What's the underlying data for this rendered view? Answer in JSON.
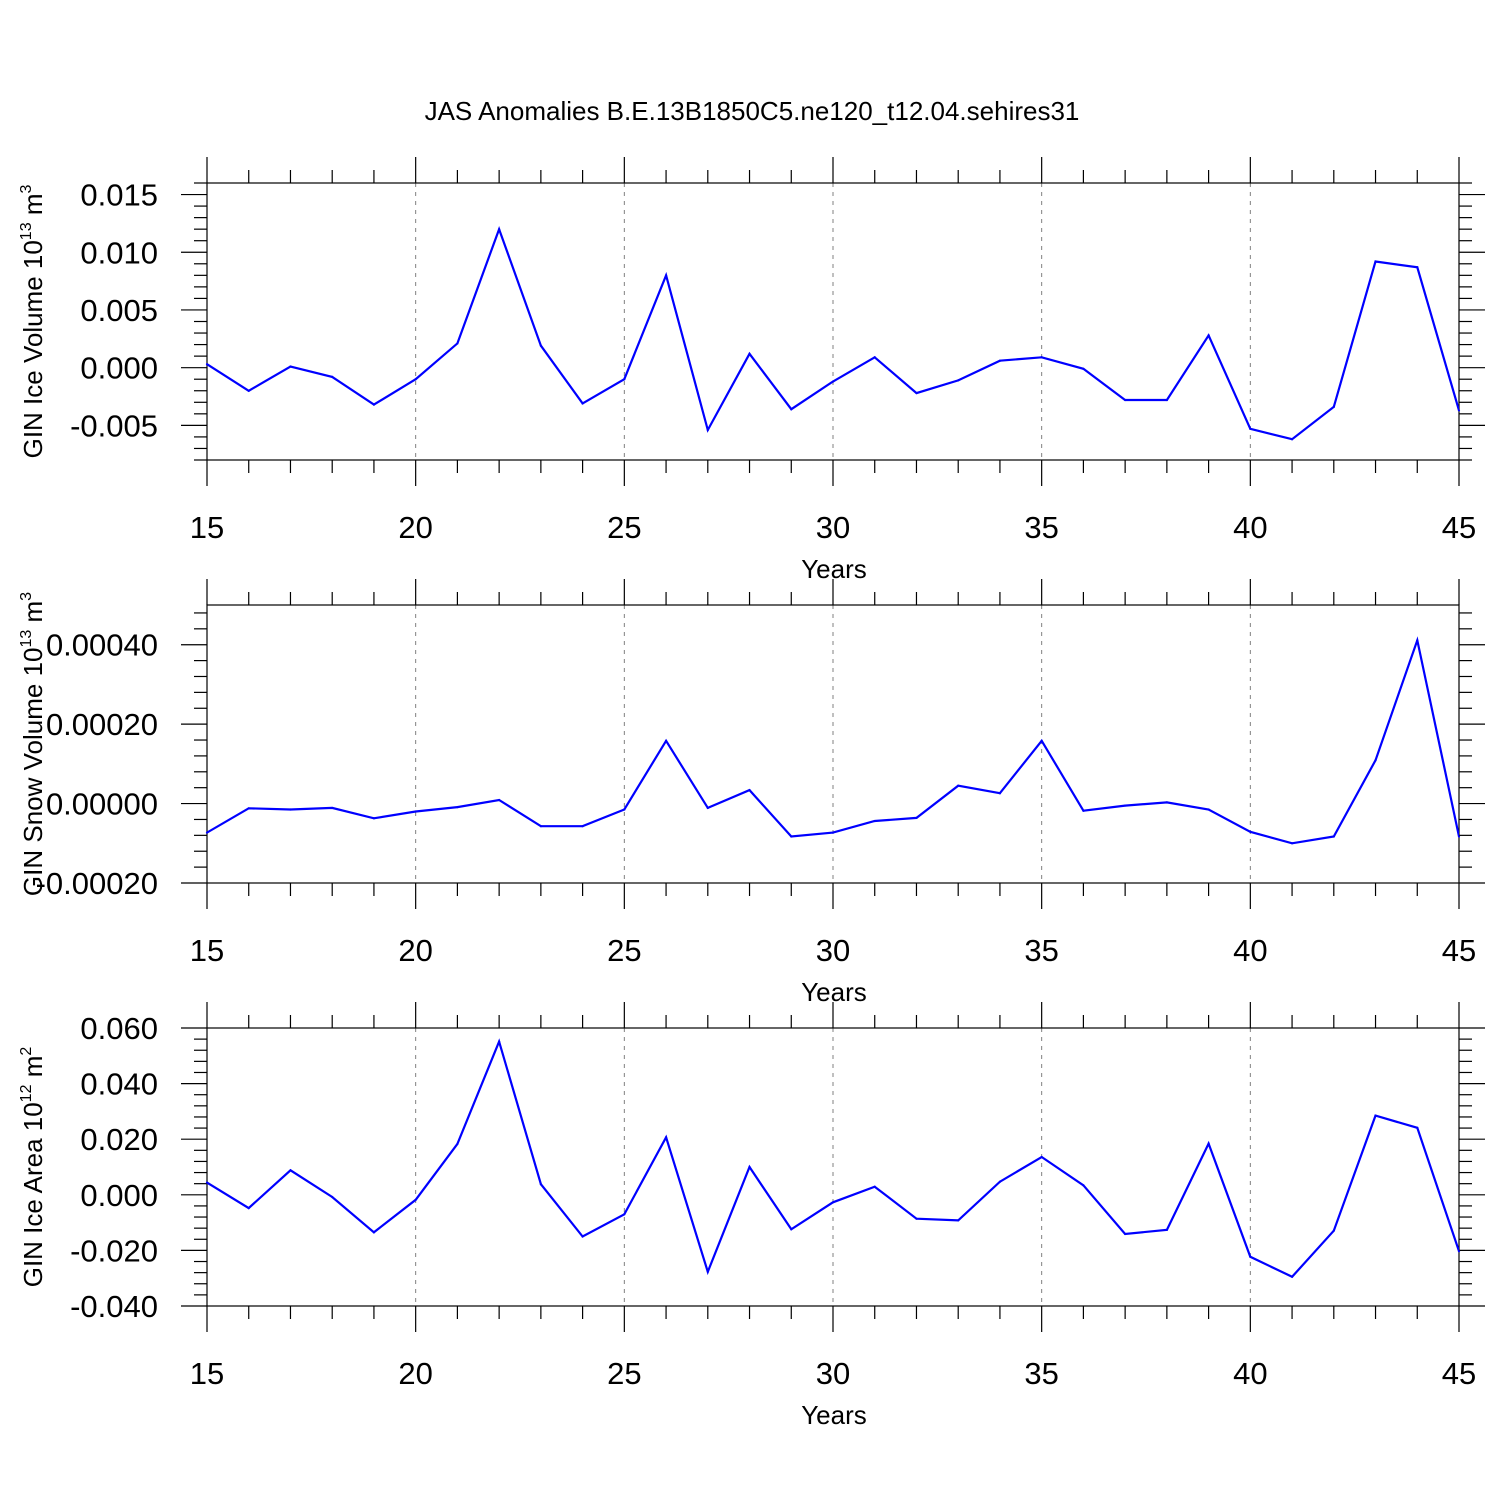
{
  "title": "JAS Anomalies B.E.13B1850C5.ne120_t12.04.sehires31",
  "colors": {
    "series": "#0000ff",
    "axis": "#000000",
    "grid": "#808080",
    "background": "#ffffff"
  },
  "chart_data": [
    {
      "type": "line",
      "ylabel": {
        "prefix": "GIN Ice Volume 10",
        "exp": "13",
        "unit": " m",
        "unit_exp": "3"
      },
      "xlabel": "Years",
      "xlim": [
        15,
        45
      ],
      "ylim": [
        -0.008,
        0.016
      ],
      "yticks": [
        "0.015",
        "0.010",
        "0.005",
        "0.000",
        "-0.005"
      ],
      "ytick_values": [
        0.015,
        0.01,
        0.005,
        0.0,
        -0.005
      ],
      "xticks": [
        "15",
        "20",
        "25",
        "30",
        "35",
        "40",
        "45"
      ],
      "grid": "vertical dashed at major x ticks",
      "x": [
        15,
        16,
        17,
        18,
        19,
        20,
        21,
        22,
        23,
        24,
        25,
        26,
        27,
        28,
        29,
        30,
        31,
        32,
        33,
        34,
        35,
        36,
        37,
        38,
        39,
        40,
        41,
        42,
        43,
        44,
        45
      ],
      "values": [
        0.0003,
        -0.002,
        0.0001,
        -0.0008,
        -0.0032,
        -0.001,
        0.0021,
        0.012,
        0.0019,
        -0.0031,
        -0.001,
        0.008,
        -0.0054,
        0.0012,
        -0.0036,
        -0.0012,
        0.0009,
        -0.0022,
        -0.0011,
        0.0006,
        0.0009,
        -0.0001,
        -0.0028,
        -0.0028,
        0.0028,
        -0.0053,
        -0.0062,
        -0.0034,
        0.0092,
        0.0087,
        -0.0037
      ]
    },
    {
      "type": "line",
      "ylabel": {
        "prefix": "GIN Snow Volume 10",
        "exp": "13",
        "unit": " m",
        "unit_exp": "3"
      },
      "xlabel": "Years",
      "xlim": [
        15,
        45
      ],
      "ylim": [
        -0.0002,
        0.0005
      ],
      "yticks": [
        "0.00040",
        "0.00020",
        "0.00000",
        "-0.00020"
      ],
      "ytick_values": [
        0.0004,
        0.0002,
        0.0,
        -0.0002
      ],
      "xticks": [
        "15",
        "20",
        "25",
        "30",
        "35",
        "40",
        "45"
      ],
      "grid": "vertical dashed at major x ticks",
      "x": [
        15,
        16,
        17,
        18,
        19,
        20,
        21,
        22,
        23,
        24,
        25,
        26,
        27,
        28,
        29,
        30,
        31,
        32,
        33,
        34,
        35,
        36,
        37,
        38,
        39,
        40,
        41,
        42,
        43,
        44,
        45
      ],
      "values": [
        -7.3e-05,
        -1.2e-05,
        -1.5e-05,
        -1.1e-05,
        -3.7e-05,
        -2e-05,
        -9e-06,
        9e-06,
        -5.7e-05,
        -5.7e-05,
        -1.5e-05,
        0.000158,
        -1.1e-05,
        3.4e-05,
        -8.3e-05,
        -7.3e-05,
        -4.4e-05,
        -3.6e-05,
        4.5e-05,
        2.6e-05,
        0.000158,
        -1.8e-05,
        -5e-06,
        3e-06,
        -1.5e-05,
        -7.1e-05,
        -0.0001,
        -8.3e-05,
        0.000109,
        0.000411,
        -8.3e-05
      ]
    },
    {
      "type": "line",
      "ylabel": {
        "prefix": "GIN Ice Area 10",
        "exp": "12",
        "unit": " m",
        "unit_exp": "2"
      },
      "xlabel": "Years",
      "xlim": [
        15,
        45
      ],
      "ylim": [
        -0.04,
        0.06
      ],
      "yticks": [
        "0.060",
        "0.040",
        "0.020",
        "0.000",
        "-0.020",
        "-0.040"
      ],
      "ytick_values": [
        0.06,
        0.04,
        0.02,
        0.0,
        -0.02,
        -0.04
      ],
      "xticks": [
        "15",
        "20",
        "25",
        "30",
        "35",
        "40",
        "45"
      ],
      "grid": "vertical dashed at major x ticks",
      "x": [
        15,
        16,
        17,
        18,
        19,
        20,
        21,
        22,
        23,
        24,
        25,
        26,
        27,
        28,
        29,
        30,
        31,
        32,
        33,
        34,
        35,
        36,
        37,
        38,
        39,
        40,
        41,
        42,
        43,
        44,
        45
      ],
      "values": [
        0.0044,
        -0.0048,
        0.0088,
        -0.0008,
        -0.0135,
        -0.0018,
        0.0183,
        0.0551,
        0.0038,
        -0.015,
        -0.007,
        0.0207,
        -0.0277,
        0.01,
        -0.0124,
        -0.0027,
        0.0029,
        -0.0086,
        -0.0092,
        0.0047,
        0.0136,
        0.0034,
        -0.0141,
        -0.0126,
        0.0184,
        -0.0223,
        -0.0295,
        -0.0129,
        0.0285,
        0.0241,
        -0.0203
      ]
    }
  ]
}
